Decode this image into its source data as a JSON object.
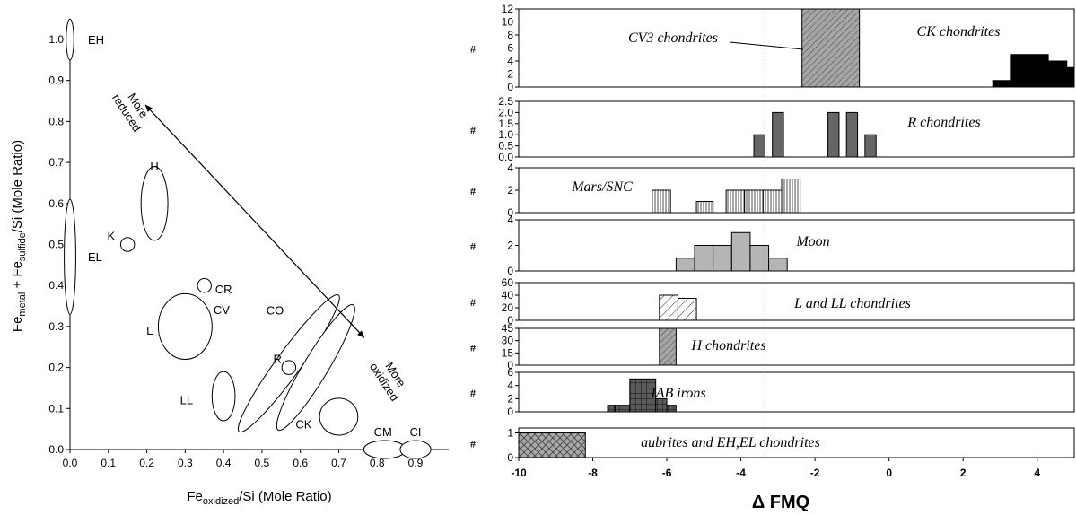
{
  "chart_data": [
    {
      "type": "scatter",
      "title": "",
      "xlabel": {
        "base": "Fe",
        "sub": "oxidized",
        "rest": "/Si (Mole Ratio)"
      },
      "ylabel": {
        "a": "Fe",
        "a_sub": "metal",
        "b": " + Fe",
        "b_sub": "sulfide",
        "rest": "/Si (Mole Ratio)"
      },
      "xlim": [
        0.0,
        0.9
      ],
      "ylim": [
        0.0,
        1.0
      ],
      "xticks": [
        "0.0",
        "0.1",
        "0.2",
        "0.3",
        "0.4",
        "0.5",
        "0.6",
        "0.7",
        "0.8",
        "0.9"
      ],
      "yticks": [
        "0.0",
        "0.1",
        "0.2",
        "0.3",
        "0.4",
        "0.5",
        "0.6",
        "0.7",
        "0.8",
        "0.9",
        "1.0"
      ],
      "groups": [
        {
          "name": "EH",
          "x": 0.0,
          "y": 1.0,
          "rx": 0.01,
          "ry": 0.05
        },
        {
          "name": "EL",
          "x": 0.0,
          "y": 0.47,
          "rx": 0.015,
          "ry": 0.14
        },
        {
          "name": "H",
          "x": 0.22,
          "y": 0.6,
          "rx": 0.035,
          "ry": 0.09
        },
        {
          "name": "K",
          "x": 0.15,
          "y": 0.5,
          "rx": 0.018,
          "ry": 0.017
        },
        {
          "name": "CR",
          "x": 0.35,
          "y": 0.4,
          "rx": 0.018,
          "ry": 0.017
        },
        {
          "name": "L",
          "x": 0.3,
          "y": 0.3,
          "rx": 0.07,
          "ry": 0.08
        },
        {
          "name": "LL",
          "x": 0.4,
          "y": 0.13,
          "rx": 0.03,
          "ry": 0.06
        },
        {
          "name": "CV",
          "x": 0.57,
          "y": 0.21,
          "rx": 0.22,
          "ry": 0.03,
          "angle": -54
        },
        {
          "name": "CO",
          "x": 0.64,
          "y": 0.2,
          "rx": 0.19,
          "ry": 0.03,
          "angle": -59
        },
        {
          "name": "R",
          "x": 0.57,
          "y": 0.2,
          "rx": 0.018,
          "ry": 0.017
        },
        {
          "name": "CK",
          "x": 0.7,
          "y": 0.08,
          "rx": 0.05,
          "ry": 0.045
        },
        {
          "name": "CM",
          "x": 0.82,
          "y": 0.0,
          "rx": 0.055,
          "ry": 0.022
        },
        {
          "name": "CI",
          "x": 0.9,
          "y": 0.0,
          "rx": 0.04,
          "ry": 0.022
        }
      ],
      "annotations": {
        "reduced": "More\nreduced",
        "oxidized": "More\noxidized",
        "arrow_from": [
          0.22,
          0.84
        ],
        "arrow_to": [
          0.78,
          0.26
        ]
      }
    },
    {
      "type": "bar",
      "title": "",
      "xlabel": "Δ FMQ",
      "xlim": [
        -10,
        5
      ],
      "xticks": [
        "-10",
        "-8",
        "-6",
        "-4",
        "-2",
        "0",
        "2",
        "4"
      ],
      "reference_line_x": -3.35,
      "axis_symbol": "#",
      "panels": [
        {
          "label": "CK chondrites",
          "ylim": [
            0,
            12
          ],
          "yticks": [
            "0",
            "2",
            "4",
            "6",
            "8",
            "10",
            "12"
          ],
          "fill": "solid-black",
          "bins": [
            [
              2.8,
              3.3,
              1
            ],
            [
              3.3,
              4.3,
              5
            ],
            [
              4.3,
              4.8,
              4
            ],
            [
              4.8,
              5.0,
              3
            ]
          ]
        },
        {
          "label": "CV3 chondrites",
          "ylim": [
            0,
            12
          ],
          "fill": "diag-gray",
          "bins": [
            [
              -2.35,
              -0.8,
              12
            ]
          ]
        },
        {
          "label": "R chondrites",
          "ylim": [
            0,
            2.5
          ],
          "yticks": [
            "0.0",
            "0.5",
            "1.0",
            "1.5",
            "2.0",
            "2.5"
          ],
          "fill": "solid-gray",
          "bins": [
            [
              -3.65,
              -3.35,
              1
            ],
            [
              -3.15,
              -2.85,
              2
            ],
            [
              -1.65,
              -1.35,
              2
            ],
            [
              -1.15,
              -0.85,
              2
            ],
            [
              -0.65,
              -0.35,
              1
            ]
          ]
        },
        {
          "label": "Mars/SNC",
          "ylim": [
            0,
            4
          ],
          "yticks": [
            "0",
            "2",
            "4"
          ],
          "fill": "vertical-lines",
          "bins": [
            [
              -6.4,
              -5.9,
              2
            ],
            [
              -5.2,
              -4.75,
              1
            ],
            [
              -4.4,
              -3.9,
              2
            ],
            [
              -3.9,
              -3.4,
              2
            ],
            [
              -3.4,
              -2.9,
              2
            ],
            [
              -2.9,
              -2.4,
              3
            ]
          ]
        },
        {
          "label": "Moon",
          "ylim": [
            0,
            4
          ],
          "yticks": [
            "0",
            "2",
            "4"
          ],
          "fill": "light-gray",
          "bins": [
            [
              -5.75,
              -5.25,
              1
            ],
            [
              -5.25,
              -4.75,
              2
            ],
            [
              -4.75,
              -4.25,
              2
            ],
            [
              -4.25,
              -3.75,
              3
            ],
            [
              -3.75,
              -3.25,
              2
            ],
            [
              -3.25,
              -2.75,
              1
            ]
          ]
        },
        {
          "label": "L and LL chondrites",
          "ylim": [
            0,
            60
          ],
          "yticks": [
            "0",
            "20",
            "40",
            "60"
          ],
          "fill": "diag-white",
          "bins": [
            [
              -6.2,
              -5.7,
              40
            ],
            [
              -5.7,
              -5.2,
              35
            ]
          ]
        },
        {
          "label": "H chondrites",
          "ylim": [
            0,
            45
          ],
          "yticks": [
            "0",
            "15",
            "30",
            "45"
          ],
          "fill": "diag-gray",
          "bins": [
            [
              -6.2,
              -5.75,
              45
            ]
          ]
        },
        {
          "label": "IAB irons",
          "ylim": [
            0,
            6
          ],
          "yticks": [
            "0",
            "2",
            "4",
            "6"
          ],
          "fill": "grid-dark",
          "bins": [
            [
              -7.6,
              -7.4,
              1
            ],
            [
              -7.4,
              -7.0,
              1
            ],
            [
              -7.0,
              -6.3,
              5
            ],
            [
              -6.3,
              -6.0,
              2
            ],
            [
              -6.0,
              -5.75,
              1
            ]
          ]
        },
        {
          "label": "aubrites and EH,EL chondrites",
          "ylim": [
            0,
            1.2
          ],
          "yticks": [
            "0",
            "1"
          ],
          "fill": "crosshatch",
          "bins": [
            [
              -10.0,
              -8.2,
              1
            ]
          ]
        }
      ]
    }
  ]
}
